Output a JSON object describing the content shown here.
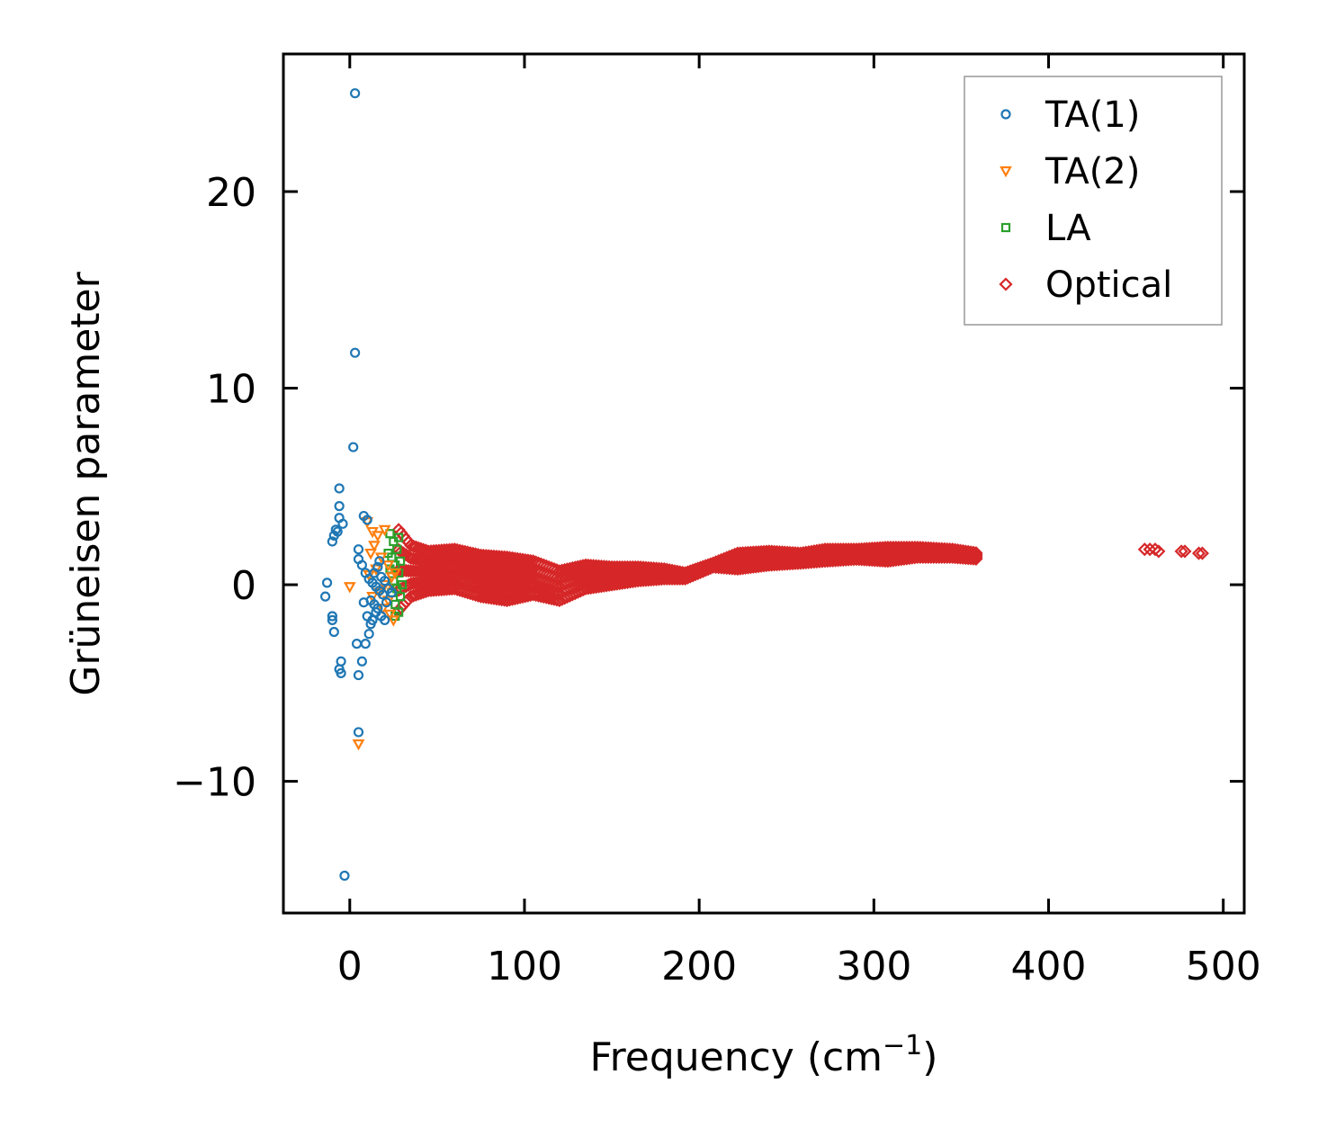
{
  "chart_data": {
    "type": "scatter",
    "title": "",
    "xlabel": "Frequency (cm",
    "xlabel_sup": "−1",
    "xlabel_end": ")",
    "ylabel": "Grüneisen parameter",
    "xlim": [
      -38,
      512
    ],
    "ylim": [
      -16.7,
      27.0
    ],
    "xticks": [
      0,
      100,
      200,
      300,
      400,
      500
    ],
    "yticks": [
      -10,
      0,
      10,
      20
    ],
    "xtick_labels": [
      "0",
      "100",
      "200",
      "300",
      "400",
      "500"
    ],
    "ytick_labels": [
      "−10",
      "0",
      "10",
      "20"
    ],
    "grid": false,
    "legend_position": "top-right",
    "series": [
      {
        "name": "TA(1)",
        "marker": "circle",
        "color": "#1f77b4",
        "points": [
          [
            3,
            25.0
          ],
          [
            3,
            11.8
          ],
          [
            2,
            7.0
          ],
          [
            -6,
            4.9
          ],
          [
            -6,
            4.0
          ],
          [
            -6,
            3.4
          ],
          [
            -4,
            3.1
          ],
          [
            -8,
            2.8
          ],
          [
            -9,
            2.5
          ],
          [
            -10,
            2.2
          ],
          [
            -7,
            2.7
          ],
          [
            8,
            3.5
          ],
          [
            10,
            3.3
          ],
          [
            5,
            1.8
          ],
          [
            5,
            1.3
          ],
          [
            7,
            1.0
          ],
          [
            9,
            0.6
          ],
          [
            11,
            0.3
          ],
          [
            13,
            0.1
          ],
          [
            15,
            -0.1
          ],
          [
            17,
            -0.3
          ],
          [
            19,
            -0.5
          ],
          [
            12,
            -0.8
          ],
          [
            14,
            -1.0
          ],
          [
            10,
            -1.6
          ],
          [
            12,
            -2.0
          ],
          [
            -13,
            0.1
          ],
          [
            -14,
            -0.6
          ],
          [
            -10,
            -1.6
          ],
          [
            -10,
            -1.8
          ],
          [
            -9,
            -2.4
          ],
          [
            4,
            -3.0
          ],
          [
            9,
            -3.0
          ],
          [
            7,
            -3.9
          ],
          [
            -5,
            -3.9
          ],
          [
            -6,
            -4.3
          ],
          [
            -5,
            -4.5
          ],
          [
            5,
            -4.6
          ],
          [
            5,
            -7.5
          ],
          [
            -3,
            -14.8
          ],
          [
            16,
            0.9
          ],
          [
            18,
            0.4
          ],
          [
            20,
            0.2
          ],
          [
            22,
            -0.2
          ],
          [
            14,
            0.6
          ],
          [
            16,
            -1.2
          ],
          [
            18,
            -1.6
          ],
          [
            20,
            -1.8
          ],
          [
            11,
            -2.5
          ],
          [
            8,
            -0.9
          ],
          [
            15,
            -1.4
          ],
          [
            13,
            -1.8
          ],
          [
            17,
            1.2
          ],
          [
            21,
            -0.9
          ],
          [
            24,
            -0.4
          ]
        ]
      },
      {
        "name": "TA(2)",
        "marker": "triangle-down",
        "color": "#ff7f0e",
        "points": [
          [
            5,
            -8.1
          ],
          [
            0,
            -0.1
          ],
          [
            10,
            3.2
          ],
          [
            13,
            2.7
          ],
          [
            16,
            2.5
          ],
          [
            20,
            2.8
          ],
          [
            14,
            2.0
          ],
          [
            12,
            1.6
          ],
          [
            18,
            1.4
          ],
          [
            22,
            1.0
          ],
          [
            15,
            0.8
          ],
          [
            24,
            0.4
          ],
          [
            20,
            0.0
          ],
          [
            17,
            -0.4
          ],
          [
            22,
            -0.8
          ],
          [
            19,
            -1.2
          ],
          [
            23,
            -1.5
          ],
          [
            25,
            -1.8
          ],
          [
            21,
            -0.2
          ],
          [
            26,
            0.6
          ],
          [
            11,
            0.5
          ],
          [
            13,
            -0.6
          ]
        ]
      },
      {
        "name": "LA",
        "marker": "square",
        "color": "#2ca02c",
        "points": [
          [
            23,
            2.6
          ],
          [
            25,
            2.2
          ],
          [
            27,
            1.8
          ],
          [
            24,
            1.4
          ],
          [
            26,
            1.0
          ],
          [
            28,
            0.6
          ],
          [
            25,
            0.2
          ],
          [
            27,
            -0.2
          ],
          [
            29,
            -0.6
          ],
          [
            26,
            -1.0
          ],
          [
            28,
            -1.4
          ],
          [
            24,
            -0.4
          ],
          [
            23,
            0.8
          ],
          [
            29,
            1.2
          ],
          [
            30,
            0.0
          ],
          [
            22,
            1.6
          ],
          [
            28,
            2.4
          ],
          [
            26,
            -1.6
          ]
        ]
      },
      {
        "name": "Optical",
        "marker": "diamond",
        "color": "#d62728",
        "bands": [
          [
            28,
            2.8,
            -1.3
          ],
          [
            35,
            2.0,
            -0.6
          ],
          [
            45,
            1.7,
            -0.3
          ],
          [
            60,
            1.8,
            -0.2
          ],
          [
            75,
            1.5,
            -0.6
          ],
          [
            90,
            1.4,
            -0.8
          ],
          [
            105,
            1.2,
            -0.5
          ],
          [
            120,
            0.7,
            -0.8
          ],
          [
            135,
            1.0,
            -0.2
          ],
          [
            150,
            0.9,
            0.0
          ],
          [
            165,
            0.9,
            0.2
          ],
          [
            180,
            0.8,
            0.3
          ],
          [
            192,
            0.6,
            0.3
          ],
          [
            208,
            1.1,
            0.9
          ],
          [
            222,
            1.6,
            0.8
          ],
          [
            240,
            1.7,
            1.0
          ],
          [
            258,
            1.6,
            1.1
          ],
          [
            272,
            1.8,
            1.2
          ],
          [
            290,
            1.8,
            1.3
          ],
          [
            308,
            1.9,
            1.2
          ],
          [
            325,
            1.9,
            1.4
          ],
          [
            345,
            1.8,
            1.4
          ],
          [
            360,
            1.6,
            1.3
          ]
        ],
        "points": [
          [
            455,
            1.8
          ],
          [
            458,
            1.8
          ],
          [
            461,
            1.8
          ],
          [
            463,
            1.7
          ],
          [
            476,
            1.7
          ],
          [
            478,
            1.7
          ],
          [
            486,
            1.6
          ],
          [
            488,
            1.6
          ]
        ]
      }
    ]
  }
}
